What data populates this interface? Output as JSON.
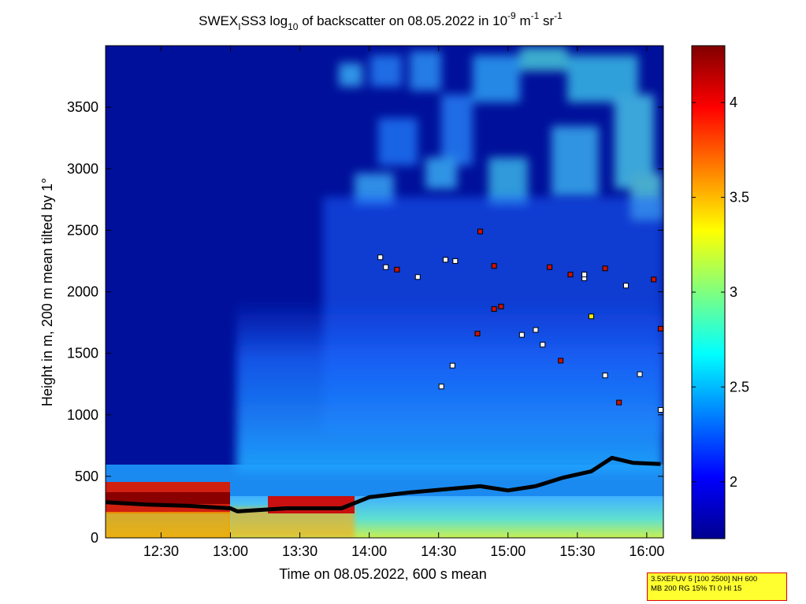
{
  "chart_data": {
    "type": "heatmap",
    "title": {
      "prefix": "SWEX",
      "sub1": "I",
      "mid": "SS3 log",
      "sub2": "10",
      "rest": " of backscatter on 08.05.2022 in 10",
      "sup1": "-9",
      "unit1": " m",
      "sup2": "-1",
      "unit2": " sr",
      "sup3": "-1"
    },
    "xlabel": "Time on 08.05.2022, 600 s mean",
    "ylabel": "Height in m, 200 m mean tilted by 1°",
    "x_ticks": [
      "12:30",
      "13:00",
      "13:30",
      "14:00",
      "14:30",
      "15:00",
      "15:30",
      "16:00"
    ],
    "x_tick_hours": [
      12.5,
      13.0,
      13.5,
      14.0,
      14.5,
      15.0,
      15.5,
      16.0
    ],
    "xlim_hours": [
      12.1,
      16.12
    ],
    "y_ticks": [
      "0",
      "500",
      "1000",
      "1500",
      "2000",
      "2500",
      "3000",
      "3500"
    ],
    "ylim": [
      0,
      4000
    ],
    "colorbar": {
      "range": [
        1.7,
        4.3
      ],
      "ticks": [
        "2",
        "2.5",
        "3",
        "3.5",
        "4"
      ],
      "colormap": "jet"
    },
    "grid": false,
    "boundary_layer": {
      "hours": [
        12.1,
        12.4,
        12.7,
        13.0,
        13.05,
        13.4,
        13.8,
        14.0,
        14.3,
        14.6,
        14.8,
        15.0,
        15.2,
        15.4,
        15.6,
        15.75,
        15.9,
        16.1
      ],
      "heights": [
        290,
        270,
        260,
        240,
        215,
        240,
        240,
        330,
        370,
        400,
        420,
        385,
        420,
        490,
        540,
        650,
        610,
        600
      ]
    },
    "cloud_markers": {
      "hours": [
        14.08,
        14.12,
        14.2,
        14.35,
        14.55,
        14.62,
        14.8,
        14.9,
        15.1,
        15.25,
        15.45,
        15.55,
        15.7,
        15.85,
        16.05,
        14.52,
        14.78,
        14.95,
        15.2,
        15.38,
        15.6,
        15.8,
        15.95,
        16.1,
        14.6,
        14.9,
        15.3,
        15.55,
        15.7,
        16.1
      ],
      "heights": [
        2280,
        2200,
        2180,
        2120,
        2260,
        2250,
        2490,
        2210,
        1650,
        1570,
        2140,
        2110,
        2190,
        2050,
        2100,
        1230,
        1660,
        1880,
        1690,
        1440,
        1800,
        1100,
        1330,
        1040,
        1400,
        1860,
        2200,
        2140,
        1320,
        1700
      ],
      "colors": [
        "#ffffff",
        "#ffffff",
        "#cc1100",
        "#ffffff",
        "#ffffff",
        "#ffffff",
        "#cc1100",
        "#cc1100",
        "#ffffff",
        "#ffffff",
        "#cc1100",
        "#ffffff",
        "#cc1100",
        "#ffffff",
        "#cc1100",
        "#ffffff",
        "#cc1100",
        "#cc1100",
        "#ffffff",
        "#cc1100",
        "#ffee00",
        "#cc1100",
        "#ffffff",
        "#ffffff",
        "#ffffff",
        "#cc1100",
        "#cc1100",
        "#ffffff",
        "#ffffff",
        "#cc1100"
      ]
    }
  },
  "legend_box": {
    "line1": "3.5XEFUV 5 [100 2500] NH 600",
    "line2": "MB 200 RG 15% TI 0 HI 15"
  }
}
